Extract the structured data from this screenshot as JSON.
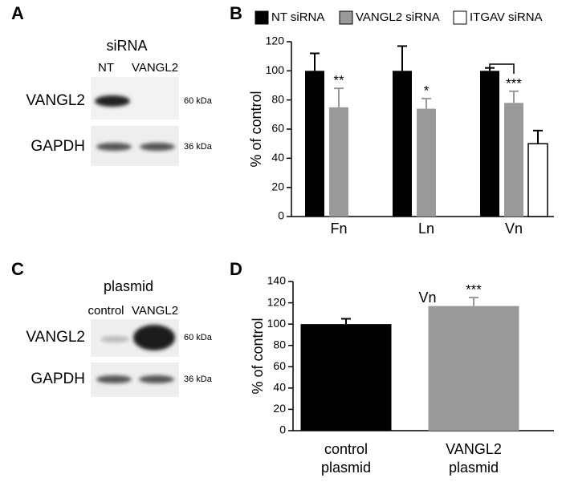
{
  "panels": {
    "a": {
      "label": "A",
      "title": "siRNA",
      "lanes": [
        "NT",
        "VANGL2"
      ],
      "rows": [
        {
          "label": "VANGL2",
          "size": "60 kDa"
        },
        {
          "label": "GAPDH",
          "size": "36 kDa"
        }
      ]
    },
    "c": {
      "label": "C",
      "title": "plasmid",
      "lanes": [
        "control",
        "VANGL2"
      ],
      "rows": [
        {
          "label": "VANGL2",
          "size": "60 kDa"
        },
        {
          "label": "GAPDH",
          "size": "36 kDa"
        }
      ]
    }
  },
  "chart_data": [
    {
      "type": "bar",
      "panel_label": "B",
      "y_label": "% of control",
      "categories": [
        "Fn",
        "Ln",
        "Vn"
      ],
      "series": [
        {
          "name": "NT siRNA",
          "color": "#000000",
          "values": [
            100,
            100,
            100
          ],
          "errors": [
            12,
            17,
            2
          ]
        },
        {
          "name": "VANGL2 siRNA",
          "color": "#999999",
          "values": [
            75,
            74,
            78
          ],
          "errors": [
            13,
            7,
            8
          ],
          "significance": [
            "**",
            "*",
            "***"
          ]
        },
        {
          "name": "ITGAV siRNA",
          "color": "#ffffff",
          "values": [
            null,
            null,
            50
          ],
          "errors": [
            null,
            null,
            9
          ]
        }
      ],
      "ylim": [
        0,
        120
      ],
      "yticks": [
        0,
        20,
        40,
        60,
        80,
        100,
        120
      ],
      "legend": "top"
    },
    {
      "type": "bar",
      "panel_label": "D",
      "title": "Vn",
      "y_label": "% of control",
      "categories": [
        [
          "control",
          "plasmid"
        ],
        [
          "VANGL2",
          "plasmid"
        ]
      ],
      "series": [
        {
          "colors": [
            "#000000",
            "#999999"
          ],
          "values": [
            100,
            117
          ],
          "errors": [
            5,
            8
          ],
          "significance": [
            null,
            "***"
          ]
        }
      ],
      "ylim": [
        0,
        140
      ],
      "yticks": [
        0,
        20,
        40,
        60,
        80,
        100,
        120,
        140
      ]
    }
  ]
}
